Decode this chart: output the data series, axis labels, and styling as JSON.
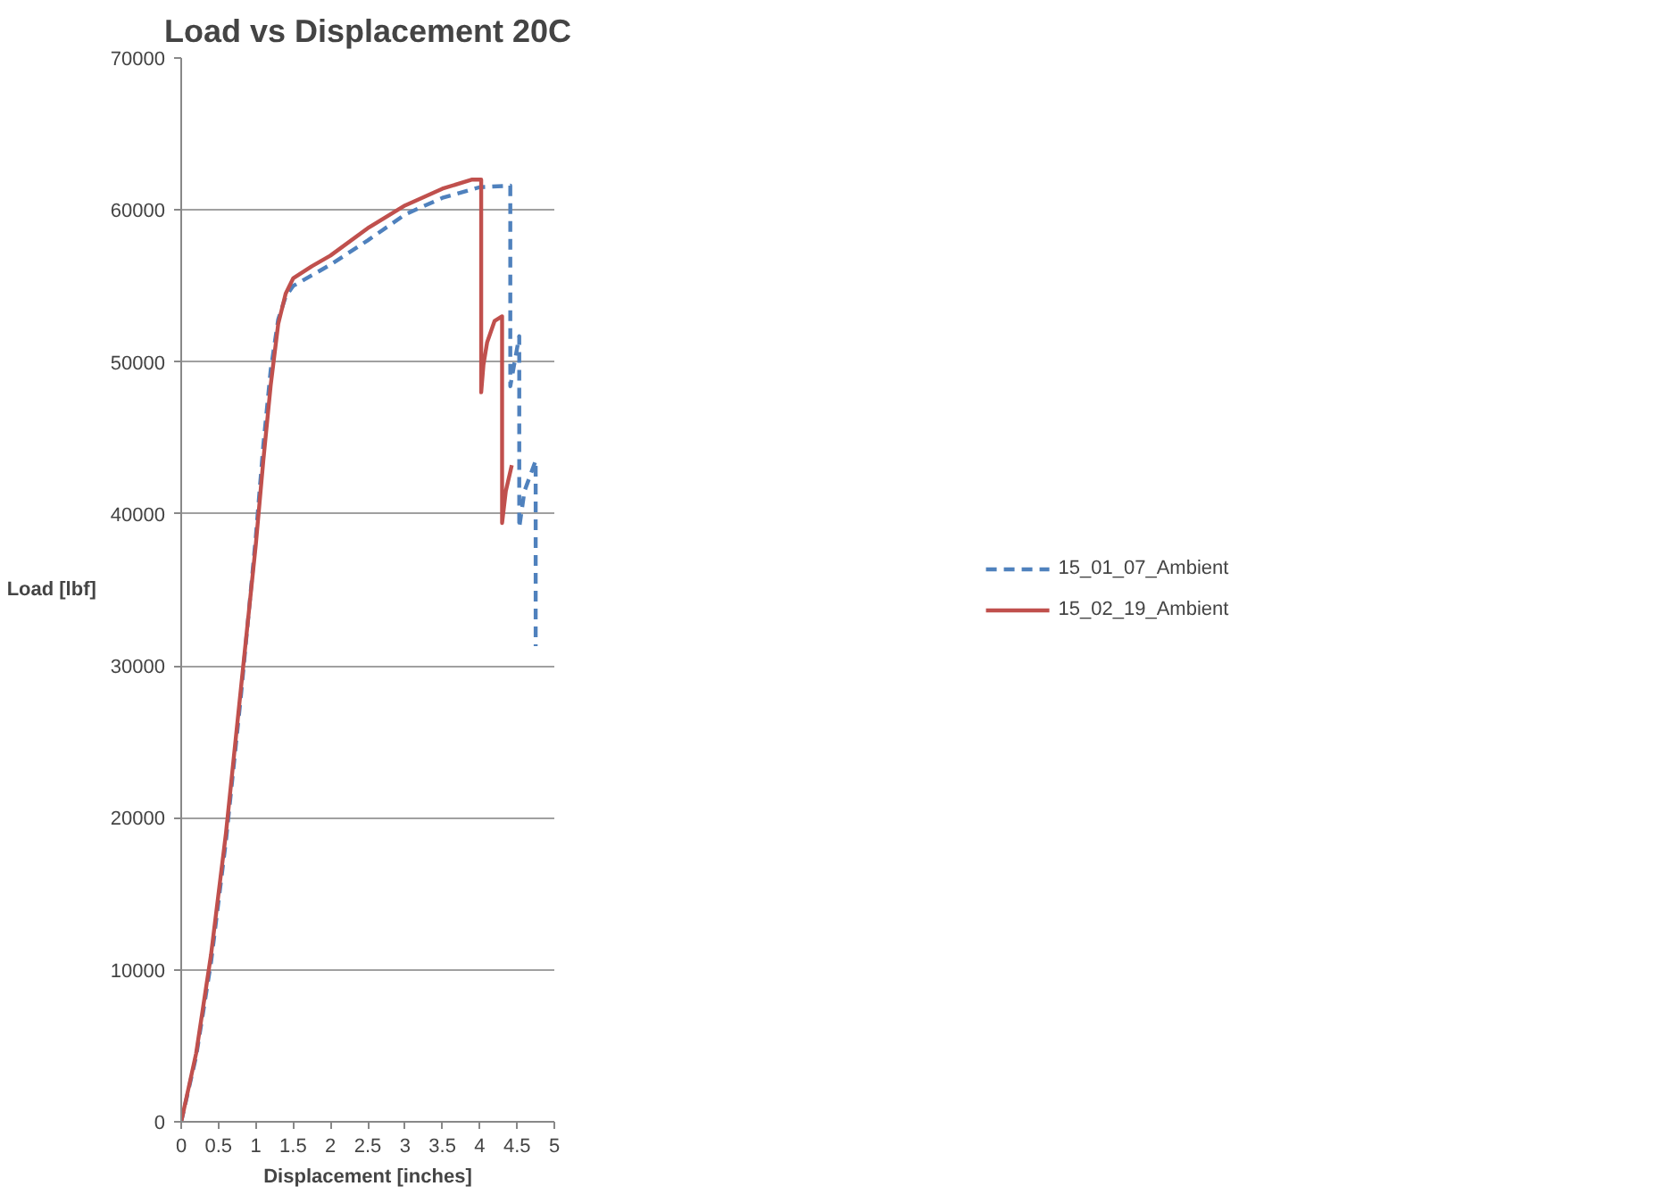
{
  "chart_data": {
    "type": "line",
    "title": "Load vs Displacement 20C",
    "xlabel": "Displacement [inches]",
    "ylabel": "Load [lbf]",
    "xlim": [
      0,
      5
    ],
    "xticks": [
      0,
      0.5,
      1,
      1.5,
      2,
      2.5,
      3,
      3.5,
      4,
      4.5,
      5
    ],
    "ylim": [
      0,
      70000
    ],
    "yticks": [
      0,
      10000,
      20000,
      30000,
      40000,
      50000,
      60000,
      70000
    ],
    "grid": "y",
    "legend": "right",
    "marker": "none",
    "series": [
      {
        "name": "15_01_07_Ambient",
        "color": "#4f81bd",
        "line_style": "dashed",
        "x": [
          0,
          0.2,
          0.4,
          0.6,
          0.8,
          1.0,
          1.1,
          1.2,
          1.3,
          1.4,
          1.5,
          2.0,
          2.5,
          3.0,
          3.5,
          4.0,
          4.41,
          4.41,
          4.53,
          4.53,
          4.6,
          4.75,
          4.75
        ],
        "values": [
          0,
          4300,
          10500,
          18500,
          28000,
          38500,
          44500,
          49500,
          52800,
          54300,
          55000,
          56400,
          58000,
          59700,
          60800,
          61500,
          61600,
          48400,
          51700,
          39100,
          41500,
          43500,
          31300
        ]
      },
      {
        "name": "15_02_19_Ambient",
        "color": "#c0504d",
        "line_style": "solid",
        "x": [
          0,
          0.2,
          0.4,
          0.6,
          0.8,
          1.0,
          1.1,
          1.2,
          1.3,
          1.4,
          1.5,
          1.75,
          2.0,
          2.5,
          3.0,
          3.5,
          3.9,
          4.02,
          4.02,
          4.05,
          4.1,
          4.2,
          4.3,
          4.3,
          4.35,
          4.43
        ],
        "values": [
          0,
          4500,
          11000,
          19000,
          28500,
          38000,
          43500,
          48500,
          52500,
          54500,
          55500,
          56300,
          57000,
          58800,
          60300,
          61400,
          62000,
          62000,
          48000,
          49800,
          51300,
          52700,
          53000,
          39400,
          41500,
          43200
        ]
      }
    ]
  }
}
